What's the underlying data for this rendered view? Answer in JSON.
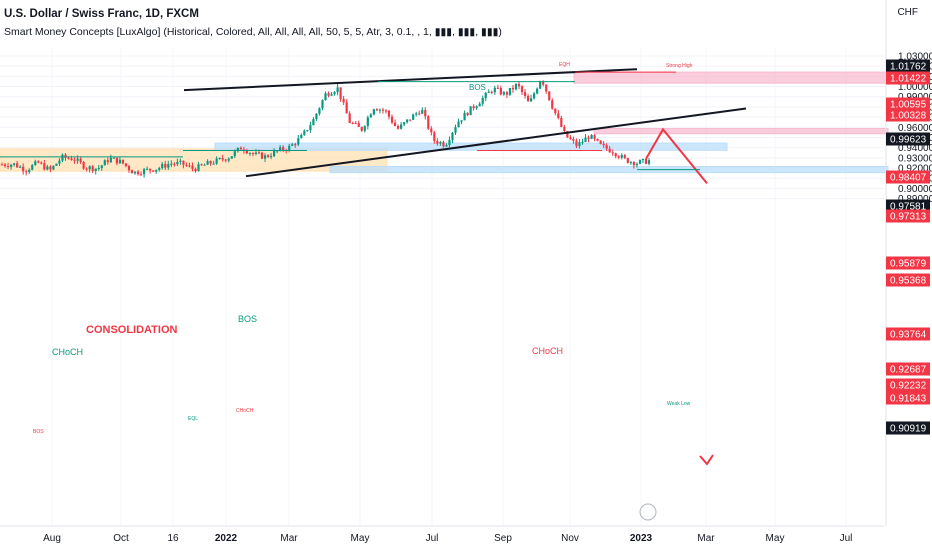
{
  "header": {
    "title": "U.S. Dollar / Swiss Franc, 1D, FXCM",
    "indicator": "Smart Money Concepts [LuxAlgo] (Historical, Colored, All, All, All, All, 50, 5, 5, Atr, 3, 0.1, , 1, ▮▮▮, ▮▮▮, ▮▮▮)",
    "currency": "CHF"
  },
  "chart_data": {
    "type": "candlestick",
    "symbol": "USDCHF",
    "timeframe": "1D",
    "ylim": [
      0.885,
      1.035
    ],
    "yticks": [
      0.89,
      0.9,
      0.91,
      0.92,
      0.93,
      0.94,
      0.95,
      0.96,
      0.97,
      0.98,
      0.99,
      1.0,
      1.01,
      1.02,
      1.03
    ],
    "ytick_labels": [
      "0.89000",
      "0.90000",
      "0.91000",
      "0.92000",
      "0.93000",
      "0.94000",
      "0.95000",
      "0.96000",
      "0.97000",
      "0.98000",
      "0.99000",
      "1.00000",
      "1.01000",
      "1.02000",
      "1.03000"
    ],
    "xticks": [
      {
        "label": "Aug",
        "bold": false
      },
      {
        "label": "Oct",
        "bold": false
      },
      {
        "label": "16",
        "bold": false
      },
      {
        "label": "2022",
        "bold": true
      },
      {
        "label": "Mar",
        "bold": false
      },
      {
        "label": "May",
        "bold": false
      },
      {
        "label": "Jul",
        "bold": false
      },
      {
        "label": "Sep",
        "bold": false
      },
      {
        "label": "Nov",
        "bold": false
      },
      {
        "label": "2023",
        "bold": true
      },
      {
        "label": "Mar",
        "bold": false
      },
      {
        "label": "May",
        "bold": false
      },
      {
        "label": "Jul",
        "bold": false
      }
    ],
    "price_path": [
      [
        0.9245,
        0.9225
      ],
      [
        0.9305,
        0.917
      ],
      [
        0.9225,
        0.914
      ],
      [
        0.9315,
        0.919
      ],
      [
        0.924,
        0.911
      ],
      [
        0.937,
        0.924
      ],
      [
        0.938,
        0.92
      ],
      [
        0.9255,
        0.916
      ],
      [
        0.927,
        0.912
      ],
      [
        0.934,
        0.925
      ],
      [
        0.9335,
        0.9175
      ],
      [
        0.9185,
        0.9125
      ],
      [
        0.9225,
        0.913
      ],
      [
        0.9245,
        0.915
      ],
      [
        0.93,
        0.919
      ],
      [
        0.931,
        0.9175
      ],
      [
        0.924,
        0.914
      ],
      [
        0.929,
        0.918
      ],
      [
        0.9305,
        0.924
      ],
      [
        0.937,
        0.925
      ],
      [
        0.944,
        0.937
      ],
      [
        0.94,
        0.927
      ],
      [
        0.935,
        0.927
      ],
      [
        0.94,
        0.934
      ],
      [
        0.935,
        0.946
      ],
      [
        0.955,
        0.946
      ],
      [
        0.98,
        0.955
      ],
      [
        1.005,
        0.98
      ],
      [
        1.005,
        0.992
      ],
      [
        0.974,
        0.957
      ],
      [
        0.962,
        0.953
      ],
      [
        1.003,
        0.957
      ],
      [
        0.986,
        0.966
      ],
      [
        0.957,
        0.959
      ],
      [
        0.976,
        0.96
      ],
      [
        0.986,
        0.97
      ],
      [
        0.957,
        0.938
      ],
      [
        0.94,
        0.946
      ],
      [
        0.968,
        0.962
      ],
      [
        0.981,
        0.972
      ],
      [
        0.98,
        0.994
      ],
      [
        0.996,
        1.0
      ],
      [
        0.995,
        0.989
      ],
      [
        1.003,
        1.001
      ],
      [
        0.991,
        0.974
      ],
      [
        1.006,
        1.012
      ],
      [
        0.983,
        0.974
      ],
      [
        0.958,
        0.946
      ],
      [
        0.938,
        0.946
      ],
      [
        0.955,
        0.948
      ],
      [
        0.944,
        0.939
      ],
      [
        0.934,
        0.939
      ],
      [
        0.93,
        0.926
      ],
      [
        0.924,
        0.926
      ],
      [
        0.931,
        0.9235
      ]
    ],
    "lines": [
      {
        "name": "upper-trendline",
        "points": [
          [
            "Jan-2021",
            0.9965
          ],
          [
            "Jan-2023",
            1.017
          ]
        ]
      },
      {
        "name": "lower-trendline",
        "points": [
          [
            "Feb-2022",
            0.912
          ],
          [
            "Feb-2023",
            0.9785
          ]
        ]
      }
    ],
    "annotations": [
      "CONSOLIDATION",
      "CHoCH",
      "BOS",
      "BOS",
      "CHoCH",
      "Strong High",
      "Weak Low",
      "EQH",
      "EQL",
      "CHoCH",
      "BOS"
    ],
    "zones": [
      {
        "name": "consolidation",
        "color": "#ffe0b2",
        "range": [
          0.917,
          0.9388
        ]
      },
      {
        "name": "demand-blue-upper",
        "color": "#bbdefb",
        "range": [
          0.9374,
          0.9445
        ]
      },
      {
        "name": "demand-blue-lower",
        "color": "#bbdefb",
        "range": [
          0.9155,
          0.9215
        ]
      },
      {
        "name": "supply-red-upper",
        "color": "#f8bbd0",
        "range": [
          1.0033,
          1.0142
        ]
      },
      {
        "name": "supply-red-mid",
        "color": "#f8bbd0",
        "range": [
          0.9537,
          0.9588
        ]
      }
    ],
    "price_tags": [
      {
        "value": "1.01762",
        "bg": "#131722"
      },
      {
        "value": "1.01422",
        "bg": "#f23645"
      },
      {
        "value": "1.00595",
        "bg": "#f23645"
      },
      {
        "value": "1.00328",
        "bg": "#f23645"
      },
      {
        "value": "0.99623",
        "bg": "#131722"
      },
      {
        "value": "0.98407",
        "bg": "#f23645"
      },
      {
        "value": "0.97581",
        "bg": "#131722"
      },
      {
        "value": "0.97313",
        "bg": "#f23645"
      },
      {
        "value": "0.95879",
        "bg": "#f23645"
      },
      {
        "value": "0.95368",
        "bg": "#f23645"
      },
      {
        "value": "0.93764",
        "bg": "#f23645"
      },
      {
        "value": "0.92687",
        "bg": "#f23645"
      },
      {
        "value": "0.92232",
        "bg": "#f23645"
      },
      {
        "value": "0.91843",
        "bg": "#f23645"
      },
      {
        "value": "0.90919",
        "bg": "#131722"
      }
    ],
    "projection": [
      [
        "Jan-2023",
        0.929
      ],
      [
        "Feb-2023",
        0.958
      ],
      [
        "Apr-2023",
        0.905
      ]
    ],
    "colors": {
      "up": "#089981",
      "down": "#f23645",
      "trend": "#131722",
      "projection": "#f23645"
    }
  }
}
